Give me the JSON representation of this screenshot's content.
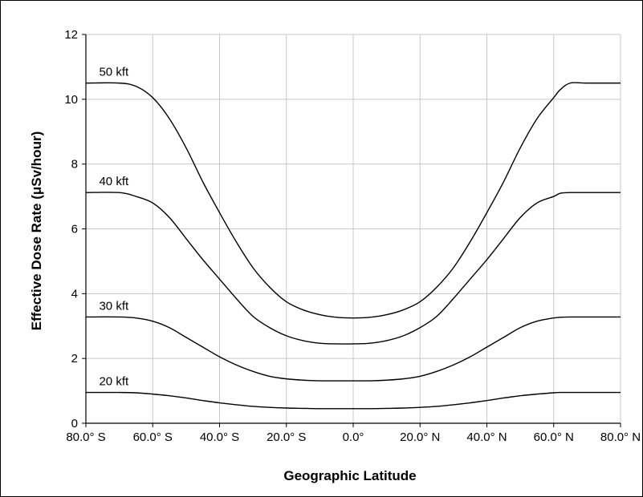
{
  "chart_data": {
    "type": "line",
    "title": "",
    "xlabel": "Geographic Latitude",
    "ylabel": "Effective Dose Rate (μSv/hour)",
    "xlim": [
      -80,
      80
    ],
    "ylim": [
      0,
      12
    ],
    "grid": true,
    "legend": "inline labels",
    "x_ticks": [
      {
        "value": -80,
        "label": "80.0° S"
      },
      {
        "value": -60,
        "label": "60.0° S"
      },
      {
        "value": -40,
        "label": "40.0° S"
      },
      {
        "value": -20,
        "label": "20.0° S"
      },
      {
        "value": 0,
        "label": "0.0°"
      },
      {
        "value": 20,
        "label": "20.0° N"
      },
      {
        "value": 40,
        "label": "40.0° N"
      },
      {
        "value": 60,
        "label": "60.0° N"
      },
      {
        "value": 80,
        "label": "80.0° N"
      }
    ],
    "y_ticks": [
      {
        "value": 0,
        "label": "0"
      },
      {
        "value": 2,
        "label": "2"
      },
      {
        "value": 4,
        "label": "4"
      },
      {
        "value": 6,
        "label": "6"
      },
      {
        "value": 8,
        "label": "8"
      },
      {
        "value": 10,
        "label": "10"
      },
      {
        "value": 12,
        "label": "12"
      }
    ],
    "series": [
      {
        "name": "50 kft",
        "color": "#000000",
        "x": [
          -80,
          -70,
          -65,
          -60,
          -55,
          -50,
          -45,
          -40,
          -35,
          -30,
          -25,
          -20,
          -15,
          -10,
          -5,
          0,
          5,
          10,
          15,
          20,
          25,
          30,
          35,
          40,
          45,
          50,
          55,
          60,
          62,
          65,
          70,
          80
        ],
        "y": [
          10.5,
          10.5,
          10.4,
          10.05,
          9.4,
          8.5,
          7.45,
          6.5,
          5.6,
          4.8,
          4.2,
          3.75,
          3.5,
          3.35,
          3.27,
          3.25,
          3.27,
          3.35,
          3.5,
          3.75,
          4.2,
          4.8,
          5.6,
          6.5,
          7.45,
          8.5,
          9.4,
          10.05,
          10.3,
          10.5,
          10.5,
          10.5
        ]
      },
      {
        "name": "40 kft",
        "color": "#000000",
        "x": [
          -80,
          -70,
          -65,
          -60,
          -55,
          -50,
          -45,
          -40,
          -35,
          -30,
          -25,
          -20,
          -15,
          -10,
          -5,
          0,
          5,
          10,
          15,
          20,
          25,
          30,
          35,
          40,
          45,
          50,
          55,
          60,
          62,
          65,
          70,
          80
        ],
        "y": [
          7.12,
          7.12,
          7.0,
          6.8,
          6.35,
          5.7,
          5.05,
          4.45,
          3.85,
          3.3,
          2.95,
          2.7,
          2.55,
          2.47,
          2.45,
          2.45,
          2.47,
          2.55,
          2.7,
          2.95,
          3.3,
          3.85,
          4.45,
          5.05,
          5.7,
          6.35,
          6.8,
          7.0,
          7.1,
          7.12,
          7.12,
          7.12
        ]
      },
      {
        "name": "30 kft",
        "color": "#000000",
        "x": [
          -80,
          -70,
          -65,
          -60,
          -55,
          -50,
          -45,
          -40,
          -35,
          -30,
          -25,
          -20,
          -15,
          -10,
          -5,
          0,
          5,
          10,
          15,
          20,
          25,
          30,
          35,
          40,
          45,
          50,
          55,
          60,
          62,
          65,
          70,
          80
        ],
        "y": [
          3.28,
          3.28,
          3.25,
          3.15,
          2.95,
          2.65,
          2.35,
          2.05,
          1.8,
          1.6,
          1.45,
          1.37,
          1.33,
          1.31,
          1.31,
          1.31,
          1.31,
          1.33,
          1.37,
          1.45,
          1.6,
          1.8,
          2.05,
          2.35,
          2.65,
          2.95,
          3.15,
          3.25,
          3.27,
          3.28,
          3.28,
          3.28
        ]
      },
      {
        "name": "20 kft",
        "color": "#000000",
        "x": [
          -80,
          -70,
          -65,
          -60,
          -55,
          -50,
          -45,
          -40,
          -35,
          -30,
          -25,
          -20,
          -15,
          -10,
          -5,
          0,
          5,
          10,
          15,
          20,
          25,
          30,
          35,
          40,
          45,
          50,
          55,
          60,
          62,
          65,
          70,
          80
        ],
        "y": [
          0.95,
          0.95,
          0.94,
          0.9,
          0.85,
          0.78,
          0.7,
          0.63,
          0.57,
          0.52,
          0.49,
          0.47,
          0.46,
          0.45,
          0.45,
          0.45,
          0.45,
          0.46,
          0.47,
          0.49,
          0.52,
          0.57,
          0.63,
          0.7,
          0.78,
          0.85,
          0.9,
          0.94,
          0.95,
          0.95,
          0.95,
          0.95
        ]
      }
    ]
  }
}
